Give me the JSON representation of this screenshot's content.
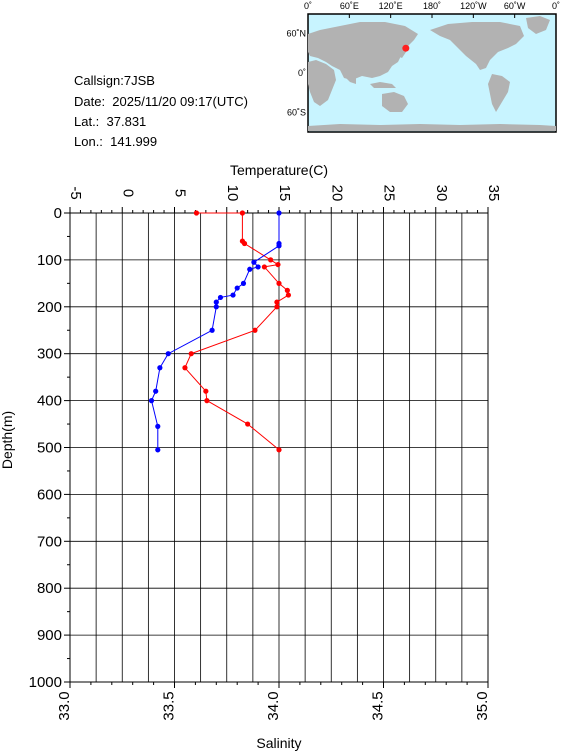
{
  "station": {
    "callsign": "Callsign:7JSB",
    "date": "Date:  2025/11/20 09:17(UTC)",
    "lat": "Lat.:  37.831",
    "lon": "Lon.:  141.999"
  },
  "map": {
    "top_labels": [
      "0˚",
      "60˚E",
      "120˚E",
      "180˚",
      "120˚W",
      "60˚W",
      "0˚"
    ],
    "lat_labels": [
      "60˚N",
      "0˚",
      "60˚S"
    ],
    "ocean_color": "#c8f4ff",
    "land_color": "#b2b2b2",
    "marker": {
      "lon": 141.999,
      "lat": 37.831,
      "color": "#ff2020"
    }
  },
  "chart_data": {
    "type": "line",
    "top_axis_label": "Temperature(C)",
    "bottom_axis_label": "Salinity",
    "left_axis_label": "Depth(m)",
    "temperature_range": [
      -5,
      35
    ],
    "temperature_ticks": [
      "-5",
      "0",
      "5",
      "10",
      "15",
      "20",
      "25",
      "30",
      "35"
    ],
    "salinity_range": [
      33.0,
      35.0
    ],
    "salinity_ticks": [
      "33.0",
      "33.5",
      "34.0",
      "34.5",
      "35.0"
    ],
    "depth_range": [
      0,
      1000
    ],
    "depth_ticks": [
      "0",
      "100",
      "200",
      "300",
      "400",
      "500",
      "600",
      "700",
      "800",
      "900",
      "1000"
    ],
    "grid": true,
    "series": [
      {
        "quantity": "temperature",
        "color": "#ff0000",
        "points": [
          [
            7.1,
            0
          ],
          [
            11.5,
            0
          ],
          [
            11.5,
            60
          ],
          [
            11.7,
            65
          ],
          [
            14.2,
            100
          ],
          [
            14.9,
            110
          ],
          [
            13.6,
            115
          ],
          [
            15.0,
            150
          ],
          [
            15.8,
            165
          ],
          [
            15.9,
            175
          ],
          [
            14.8,
            190
          ],
          [
            14.8,
            200
          ],
          [
            12.7,
            250
          ],
          [
            6.6,
            300
          ],
          [
            6.0,
            330
          ],
          [
            8.0,
            380
          ],
          [
            8.1,
            400
          ],
          [
            12.0,
            450
          ],
          [
            15.0,
            505
          ]
        ]
      },
      {
        "quantity": "salinity",
        "color": "#0000ff",
        "points": [
          [
            34.0,
            0
          ],
          [
            34.0,
            65
          ],
          [
            34.0,
            70
          ],
          [
            33.88,
            105
          ],
          [
            33.9,
            115
          ],
          [
            33.86,
            120
          ],
          [
            33.83,
            150
          ],
          [
            33.8,
            160
          ],
          [
            33.78,
            175
          ],
          [
            33.72,
            180
          ],
          [
            33.7,
            190
          ],
          [
            33.7,
            200
          ],
          [
            33.68,
            250
          ],
          [
            33.47,
            300
          ],
          [
            33.43,
            330
          ],
          [
            33.41,
            380
          ],
          [
            33.39,
            400
          ],
          [
            33.42,
            455
          ],
          [
            33.42,
            505
          ]
        ]
      }
    ]
  }
}
